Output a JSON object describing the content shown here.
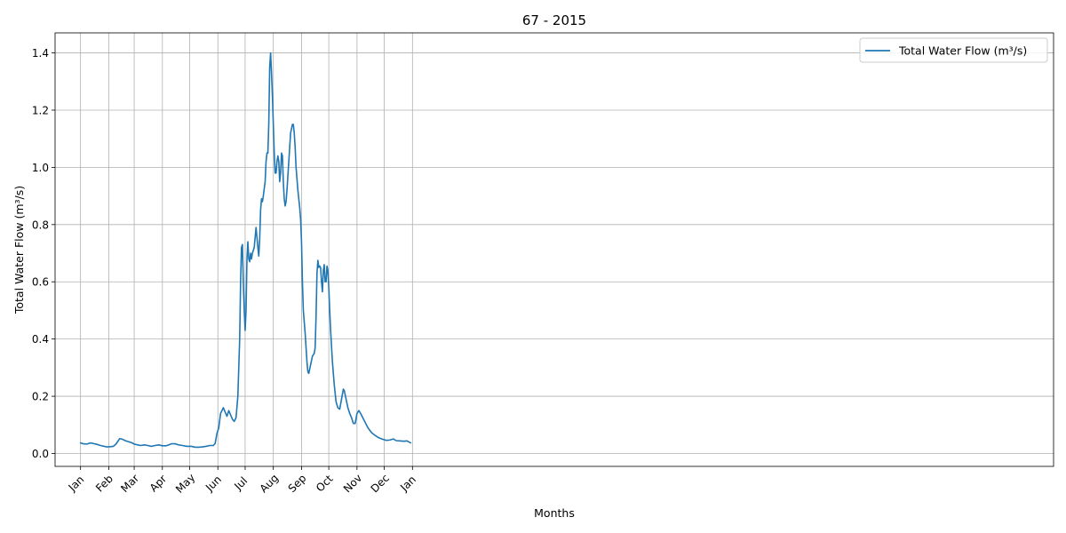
{
  "chart_data": {
    "type": "line",
    "title": "67 - 2015",
    "xlabel": "Months",
    "ylabel": "Total Water Flow (m³/s)",
    "legend_position": "top-right",
    "grid": true,
    "color": "#1f77b4",
    "ylim": [
      -0.045,
      1.47
    ],
    "xlim": [
      -28,
      1070
    ],
    "x_tick_labels": [
      "Jan",
      "Feb",
      "Mar",
      "Apr",
      "May",
      "Jun",
      "Jul",
      "Aug",
      "Sep",
      "Oct",
      "Nov",
      "Dec",
      "Jan"
    ],
    "y_ticks": [
      0.0,
      0.2,
      0.4,
      0.6,
      0.8,
      1.0,
      1.2,
      1.4
    ],
    "y_tick_labels": [
      "0.0",
      "0.2",
      "0.4",
      "0.6",
      "0.8",
      "1.0",
      "1.2",
      "1.4"
    ],
    "series": [
      {
        "name": "Total Water Flow (m³/s)",
        "dates": [
          "2015-01-01",
          "2015-01-04",
          "2015-01-08",
          "2015-01-12",
          "2015-01-15",
          "2015-01-19",
          "2015-01-23",
          "2015-01-27",
          "2015-01-30",
          "2015-02-03",
          "2015-02-06",
          "2015-02-09",
          "2015-02-13",
          "2015-02-16",
          "2015-02-19",
          "2015-02-22",
          "2015-02-26",
          "2015-03-01",
          "2015-03-05",
          "2015-03-08",
          "2015-03-12",
          "2015-03-16",
          "2015-03-20",
          "2015-03-24",
          "2015-03-28",
          "2015-04-01",
          "2015-04-05",
          "2015-04-08",
          "2015-04-11",
          "2015-04-15",
          "2015-04-19",
          "2015-04-23",
          "2015-04-28",
          "2015-05-03",
          "2015-05-07",
          "2015-05-11",
          "2015-05-15",
          "2015-05-19",
          "2015-05-23",
          "2015-05-27",
          "2015-05-29",
          "2015-05-31",
          "2015-06-02",
          "2015-06-04",
          "2015-06-07",
          "2015-06-09",
          "2015-06-11",
          "2015-06-13",
          "2015-06-15",
          "2015-06-17",
          "2015-06-19",
          "2015-06-21",
          "2015-06-23",
          "2015-06-25",
          "2015-06-26",
          "2015-06-27",
          "2015-06-28",
          "2015-06-29",
          "2015-06-30",
          "2015-07-01",
          "2015-07-02",
          "2015-07-03",
          "2015-07-04",
          "2015-07-05",
          "2015-07-06",
          "2015-07-07",
          "2015-07-08",
          "2015-07-09",
          "2015-07-11",
          "2015-07-13",
          "2015-07-15",
          "2015-07-16",
          "2015-07-17",
          "2015-07-18",
          "2015-07-19",
          "2015-07-20",
          "2015-07-21",
          "2015-07-23",
          "2015-07-24",
          "2015-07-25",
          "2015-07-26",
          "2015-07-27",
          "2015-07-28",
          "2015-07-29",
          "2015-07-30",
          "2015-07-31",
          "2015-08-01",
          "2015-08-02",
          "2015-08-03",
          "2015-08-04",
          "2015-08-05",
          "2015-08-06",
          "2015-08-07",
          "2015-08-08",
          "2015-08-09",
          "2015-08-10",
          "2015-08-11",
          "2015-08-12",
          "2015-08-13",
          "2015-08-14",
          "2015-08-15",
          "2015-08-16",
          "2015-08-18",
          "2015-08-20",
          "2015-08-22",
          "2015-08-23",
          "2015-08-24",
          "2015-08-25",
          "2015-08-26",
          "2015-08-28",
          "2015-08-30",
          "2015-08-31",
          "2015-09-01",
          "2015-09-02",
          "2015-09-03",
          "2015-09-05",
          "2015-09-07",
          "2015-09-08",
          "2015-09-09",
          "2015-09-11",
          "2015-09-13",
          "2015-09-15",
          "2015-09-16",
          "2015-09-17",
          "2015-09-18",
          "2015-09-19",
          "2015-09-20",
          "2015-09-21",
          "2015-09-22",
          "2015-09-23",
          "2015-09-24",
          "2015-09-25",
          "2015-09-26",
          "2015-09-27",
          "2015-09-28",
          "2015-09-29",
          "2015-09-30",
          "2015-10-01",
          "2015-10-02",
          "2015-10-03",
          "2015-10-05",
          "2015-10-07",
          "2015-10-09",
          "2015-10-11",
          "2015-10-13",
          "2015-10-15",
          "2015-10-17",
          "2015-10-18",
          "2015-10-20",
          "2015-10-22",
          "2015-10-24",
          "2015-10-26",
          "2015-10-28",
          "2015-10-30",
          "2015-11-01",
          "2015-11-03",
          "2015-11-05",
          "2015-11-09",
          "2015-11-13",
          "2015-11-17",
          "2015-11-21",
          "2015-11-25",
          "2015-11-29",
          "2015-12-03",
          "2015-12-07",
          "2015-12-11",
          "2015-12-14",
          "2015-12-18",
          "2015-12-22",
          "2015-12-26",
          "2015-12-30"
        ],
        "values": [
          0.037,
          0.034,
          0.033,
          0.037,
          0.035,
          0.032,
          0.028,
          0.025,
          0.023,
          0.024,
          0.025,
          0.033,
          0.052,
          0.05,
          0.045,
          0.042,
          0.038,
          0.033,
          0.03,
          0.028,
          0.03,
          0.028,
          0.025,
          0.028,
          0.03,
          0.027,
          0.027,
          0.03,
          0.034,
          0.034,
          0.03,
          0.028,
          0.025,
          0.025,
          0.022,
          0.022,
          0.023,
          0.025,
          0.028,
          0.028,
          0.035,
          0.07,
          0.09,
          0.14,
          0.16,
          0.145,
          0.13,
          0.15,
          0.135,
          0.12,
          0.112,
          0.125,
          0.2,
          0.4,
          0.6,
          0.72,
          0.73,
          0.6,
          0.5,
          0.43,
          0.5,
          0.68,
          0.74,
          0.68,
          0.67,
          0.7,
          0.68,
          0.7,
          0.72,
          0.79,
          0.72,
          0.69,
          0.75,
          0.85,
          0.89,
          0.88,
          0.9,
          0.95,
          1.02,
          1.05,
          1.05,
          1.15,
          1.35,
          1.4,
          1.33,
          1.25,
          1.15,
          1.05,
          0.98,
          0.98,
          1.02,
          1.04,
          1.02,
          0.95,
          0.98,
          1.05,
          1.04,
          0.95,
          0.89,
          0.865,
          0.88,
          0.92,
          1.02,
          1.12,
          1.15,
          1.15,
          1.12,
          1.07,
          1.0,
          0.92,
          0.86,
          0.82,
          0.74,
          0.6,
          0.5,
          0.42,
          0.32,
          0.285,
          0.28,
          0.31,
          0.34,
          0.35,
          0.37,
          0.48,
          0.63,
          0.675,
          0.65,
          0.655,
          0.65,
          0.6,
          0.565,
          0.64,
          0.66,
          0.6,
          0.6,
          0.655,
          0.64,
          0.58,
          0.5,
          0.43,
          0.32,
          0.24,
          0.18,
          0.16,
          0.155,
          0.19,
          0.225,
          0.22,
          0.19,
          0.16,
          0.14,
          0.125,
          0.105,
          0.105,
          0.14,
          0.15,
          0.14,
          0.115,
          0.09,
          0.073,
          0.063,
          0.055,
          0.05,
          0.046,
          0.047,
          0.051,
          0.045,
          0.044,
          0.043,
          0.044,
          0.037
        ]
      }
    ]
  }
}
